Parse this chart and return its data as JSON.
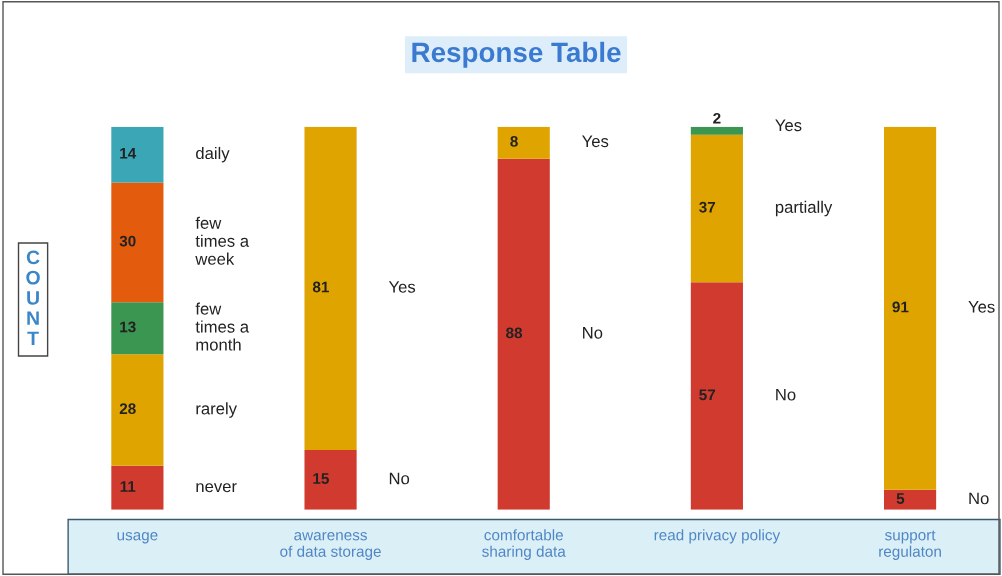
{
  "chart_data": {
    "type": "bar",
    "stacked": true,
    "title": "Response Table",
    "ylabel": "COUNT",
    "categories": [
      "usage",
      "awareness\nof data storage",
      "comfortable\nsharing data",
      "read privacy policy",
      "support\nregulaton"
    ],
    "series": [
      {
        "colors": [
          "#d13b2f",
          "#d13b2f",
          "#d13b2f",
          "#d13b2f",
          "#d13b2f"
        ],
        "values": [
          11,
          15,
          88,
          57,
          5
        ]
      },
      {
        "colors": [
          "#e0a400",
          "#e0a400",
          "#e0a400",
          "#e0a400",
          "#e0a400"
        ],
        "values": [
          28,
          81,
          8,
          37,
          91
        ]
      },
      {
        "colors": [
          "#3a9650",
          "#3a9650",
          "#3a9650",
          "#3a9650",
          "#3a9650"
        ],
        "values": [
          13,
          null,
          null,
          2,
          null
        ]
      },
      {
        "colors": [
          "#e35c0e",
          "#e35c0e",
          "#e35c0e",
          "#e35c0e",
          "#e35c0e"
        ],
        "values": [
          30,
          null,
          null,
          null,
          null
        ]
      },
      {
        "colors": [
          "#3aa6b6",
          "#3aa6b6",
          "#3aa6b6",
          "#3aa6b6",
          "#3aa6b6"
        ],
        "values": [
          14,
          null,
          null,
          null,
          null
        ]
      }
    ],
    "data_labels": true,
    "legend": false,
    "grid": false,
    "tick_labels": "x",
    "annotations": [
      "daily",
      "few\ntimes a\nweek",
      "few\ntimes a\nmonth",
      "rarely",
      "never",
      "Yes",
      "No",
      "Yes",
      "No",
      "Yes",
      "partially",
      "No",
      "Yes",
      "No"
    ]
  }
}
